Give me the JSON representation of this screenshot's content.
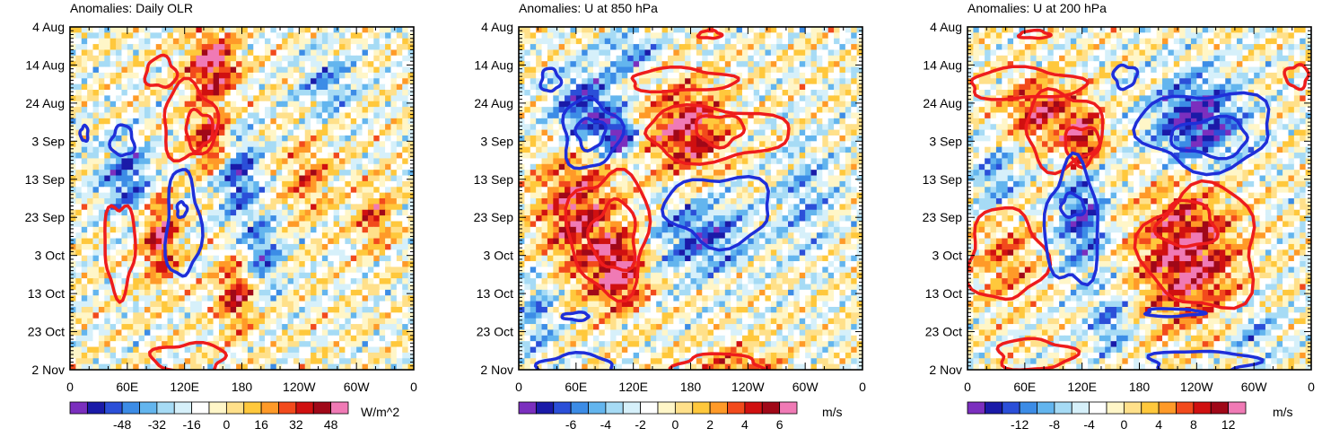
{
  "figure": {
    "background": "#ffffff"
  },
  "chart_data": [
    {
      "type": "heatmap",
      "id": "olr",
      "title": "Anomalies: Daily OLR",
      "x_ticks": [
        "0",
        "60E",
        "120E",
        "180",
        "120W",
        "60W",
        "0"
      ],
      "y_ticks": [
        "4 Aug",
        "14 Aug",
        "24 Aug",
        "3 Sep",
        "13 Sep",
        "23 Sep",
        "3 Oct",
        "13 Oct",
        "23 Oct",
        "2 Nov"
      ],
      "xlim": [
        0,
        360
      ],
      "ylim_days": [
        0,
        90
      ],
      "colorbar": {
        "ticks": [
          "-48",
          "-32",
          "-16",
          "0",
          "16",
          "32",
          "48"
        ],
        "units": "W/m^2"
      },
      "shading_blobs": [
        {
          "lon": 150,
          "day": 10,
          "amp": 1.0,
          "rlon": 25,
          "rday": 9
        },
        {
          "lon": 150,
          "day": 30,
          "amp": 0.9,
          "rlon": 22,
          "rday": 8
        },
        {
          "lon": 95,
          "day": 55,
          "amp": 0.9,
          "rlon": 18,
          "rday": 12
        },
        {
          "lon": 175,
          "day": 70,
          "amp": 0.8,
          "rlon": 20,
          "rday": 10
        },
        {
          "lon": 320,
          "day": 50,
          "amp": 0.6,
          "rlon": 20,
          "rday": 8
        },
        {
          "lon": 60,
          "day": 40,
          "amp": -0.7,
          "rlon": 30,
          "rday": 10
        },
        {
          "lon": 175,
          "day": 38,
          "amp": -0.8,
          "rlon": 22,
          "rday": 12
        },
        {
          "lon": 200,
          "day": 60,
          "amp": -0.7,
          "rlon": 20,
          "rday": 10
        },
        {
          "lon": 270,
          "day": 15,
          "amp": -0.5,
          "rlon": 30,
          "rday": 8
        },
        {
          "lon": 250,
          "day": 40,
          "amp": 0.5,
          "rlon": 25,
          "rday": 10
        }
      ],
      "contours": [
        {
          "sign": "positive",
          "lon": 95,
          "day": 12,
          "rlon": 16,
          "rday": 4
        },
        {
          "sign": "positive",
          "lon": 125,
          "day": 25,
          "rlon": 28,
          "rday": 10
        },
        {
          "sign": "positive",
          "lon": 135,
          "day": 27,
          "rlon": 14,
          "rday": 5
        },
        {
          "sign": "positive",
          "lon": 52,
          "day": 58,
          "rlon": 16,
          "rday": 12
        },
        {
          "sign": "positive",
          "lon": 125,
          "day": 87,
          "rlon": 38,
          "rday": 4
        },
        {
          "sign": "negative",
          "lon": 15,
          "day": 28,
          "rlon": 4,
          "rday": 2
        },
        {
          "sign": "negative",
          "lon": 55,
          "day": 30,
          "rlon": 12,
          "rday": 4
        },
        {
          "sign": "negative",
          "lon": 118,
          "day": 52,
          "rlon": 18,
          "rday": 14
        },
        {
          "sign": "negative",
          "lon": 117,
          "day": 48,
          "rlon": 5,
          "rday": 2
        }
      ]
    },
    {
      "type": "heatmap",
      "id": "u850",
      "title": "Anomalies: U at 850 hPa",
      "x_ticks": [
        "0",
        "60E",
        "120E",
        "180",
        "120W",
        "60W",
        "0"
      ],
      "y_ticks": [
        "4 Aug",
        "14 Aug",
        "24 Aug",
        "3 Sep",
        "13 Sep",
        "23 Sep",
        "3 Oct",
        "13 Oct",
        "23 Oct",
        "2 Nov"
      ],
      "xlim": [
        0,
        360
      ],
      "ylim_days": [
        0,
        90
      ],
      "colorbar": {
        "ticks": [
          "-6",
          "-4",
          "-2",
          "0",
          "2",
          "4",
          "6"
        ],
        "units": "m/s"
      },
      "shading_blobs": [
        {
          "lon": 175,
          "day": 27,
          "amp": 0.9,
          "rlon": 40,
          "rday": 12
        },
        {
          "lon": 60,
          "day": 48,
          "amp": 0.8,
          "rlon": 40,
          "rday": 18
        },
        {
          "lon": 105,
          "day": 64,
          "amp": 1.0,
          "rlon": 28,
          "rday": 10
        },
        {
          "lon": 230,
          "day": 90,
          "amp": 0.6,
          "rlon": 40,
          "rday": 6
        },
        {
          "lon": 70,
          "day": 22,
          "amp": -0.9,
          "rlon": 35,
          "rday": 10
        },
        {
          "lon": 105,
          "day": 29,
          "amp": -1.0,
          "rlon": 18,
          "rday": 5
        },
        {
          "lon": 120,
          "day": 7,
          "amp": -0.5,
          "rlon": 30,
          "rday": 6
        },
        {
          "lon": 190,
          "day": 55,
          "amp": -0.7,
          "rlon": 50,
          "rday": 10
        },
        {
          "lon": 300,
          "day": 45,
          "amp": -0.4,
          "rlon": 30,
          "rday": 15
        },
        {
          "lon": 20,
          "day": 75,
          "amp": -0.5,
          "rlon": 20,
          "rday": 12
        }
      ],
      "contours": [
        {
          "sign": "positive",
          "lon": 200,
          "day": 2,
          "rlon": 12,
          "rday": 1
        },
        {
          "sign": "positive",
          "lon": 170,
          "day": 14,
          "rlon": 55,
          "rday": 3
        },
        {
          "sign": "positive",
          "lon": 205,
          "day": 28,
          "rlon": 75,
          "rday": 7
        },
        {
          "sign": "positive",
          "lon": 210,
          "day": 27,
          "rlon": 25,
          "rday": 4
        },
        {
          "sign": "positive",
          "lon": 95,
          "day": 54,
          "rlon": 42,
          "rday": 16
        },
        {
          "sign": "positive",
          "lon": 100,
          "day": 55,
          "rlon": 24,
          "rday": 9
        },
        {
          "sign": "positive",
          "lon": 210,
          "day": 89,
          "rlon": 45,
          "rday": 3
        },
        {
          "sign": "negative",
          "lon": 33,
          "day": 14,
          "rlon": 10,
          "rday": 3
        },
        {
          "sign": "negative",
          "lon": 75,
          "day": 28,
          "rlon": 30,
          "rday": 9
        },
        {
          "sign": "negative",
          "lon": 75,
          "day": 28,
          "rlon": 15,
          "rday": 4
        },
        {
          "sign": "negative",
          "lon": 210,
          "day": 48,
          "rlon": 55,
          "rday": 9
        },
        {
          "sign": "negative",
          "lon": 60,
          "day": 76,
          "rlon": 14,
          "rday": 1
        },
        {
          "sign": "negative",
          "lon": 60,
          "day": 89,
          "rlon": 40,
          "rday": 3
        }
      ]
    },
    {
      "type": "heatmap",
      "id": "u200",
      "title": "Anomalies: U at 200 hPa",
      "x_ticks": [
        "0",
        "60E",
        "120E",
        "180",
        "120W",
        "60W",
        "0"
      ],
      "y_ticks": [
        "4 Aug",
        "14 Aug",
        "24 Aug",
        "3 Sep",
        "13 Sep",
        "23 Sep",
        "3 Oct",
        "13 Oct",
        "23 Oct",
        "2 Nov"
      ],
      "xlim": [
        0,
        360
      ],
      "ylim_days": [
        0,
        90
      ],
      "colorbar": {
        "ticks": [
          "-12",
          "-8",
          "-4",
          "0",
          "4",
          "8",
          "12"
        ],
        "units": "m/s"
      },
      "shading_blobs": [
        {
          "lon": 120,
          "day": 30,
          "amp": 1.0,
          "rlon": 20,
          "rday": 8
        },
        {
          "lon": 75,
          "day": 22,
          "amp": 0.8,
          "rlon": 35,
          "rday": 8
        },
        {
          "lon": 230,
          "day": 60,
          "amp": 1.0,
          "rlon": 50,
          "rday": 18
        },
        {
          "lon": 40,
          "day": 60,
          "amp": 0.5,
          "rlon": 30,
          "rday": 12
        },
        {
          "lon": 240,
          "day": 25,
          "amp": -1.0,
          "rlon": 45,
          "rday": 12
        },
        {
          "lon": 120,
          "day": 50,
          "amp": -0.8,
          "rlon": 25,
          "rday": 15
        },
        {
          "lon": 30,
          "day": 40,
          "amp": -0.5,
          "rlon": 25,
          "rday": 10
        },
        {
          "lon": 300,
          "day": 80,
          "amp": -0.4,
          "rlon": 30,
          "rday": 8
        },
        {
          "lon": 150,
          "day": 78,
          "amp": -0.6,
          "rlon": 20,
          "rday": 8
        }
      ],
      "contours": [
        {
          "sign": "positive",
          "lon": 70,
          "day": 2,
          "rlon": 16,
          "rday": 1
        },
        {
          "sign": "positive",
          "lon": 60,
          "day": 15,
          "rlon": 60,
          "rday": 4
        },
        {
          "sign": "positive",
          "lon": 100,
          "day": 27,
          "rlon": 40,
          "rday": 10
        },
        {
          "sign": "positive",
          "lon": 120,
          "day": 31,
          "rlon": 18,
          "rday": 5
        },
        {
          "sign": "positive",
          "lon": 345,
          "day": 13,
          "rlon": 12,
          "rday": 3
        },
        {
          "sign": "positive",
          "lon": 245,
          "day": 58,
          "rlon": 60,
          "rday": 16
        },
        {
          "sign": "positive",
          "lon": 230,
          "day": 52,
          "rlon": 30,
          "rday": 6
        },
        {
          "sign": "positive",
          "lon": 40,
          "day": 60,
          "rlon": 40,
          "rday": 12
        },
        {
          "sign": "positive",
          "lon": 70,
          "day": 86,
          "rlon": 40,
          "rday": 4
        },
        {
          "sign": "negative",
          "lon": 165,
          "day": 13,
          "rlon": 12,
          "rday": 3
        },
        {
          "sign": "negative",
          "lon": 250,
          "day": 27,
          "rlon": 70,
          "rday": 10
        },
        {
          "sign": "negative",
          "lon": 255,
          "day": 29,
          "rlon": 40,
          "rday": 5
        },
        {
          "sign": "negative",
          "lon": 110,
          "day": 52,
          "rlon": 28,
          "rday": 16
        },
        {
          "sign": "negative",
          "lon": 110,
          "day": 47,
          "rlon": 12,
          "rday": 3
        },
        {
          "sign": "negative",
          "lon": 215,
          "day": 75,
          "rlon": 30,
          "rday": 1
        },
        {
          "sign": "negative",
          "lon": 245,
          "day": 88,
          "rlon": 55,
          "rday": 3
        }
      ]
    }
  ],
  "palette": [
    "#7b2fbe",
    "#1a1aa8",
    "#2b4fd8",
    "#3c8ce6",
    "#63b5ee",
    "#a6dbf5",
    "#d6f0fa",
    "#ffffff",
    "#fff6c8",
    "#ffe08a",
    "#ffc83c",
    "#ff9a28",
    "#f24a1c",
    "#d01010",
    "#a00818",
    "#f07ab5"
  ],
  "contour_colors": {
    "positive": "#ee1c1c",
    "negative": "#1f2fd9"
  }
}
